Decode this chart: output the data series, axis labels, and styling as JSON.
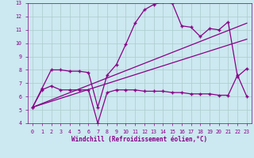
{
  "title": "",
  "xlabel": "Windchill (Refroidissement éolien,°C)",
  "ylabel": "",
  "bg_color": "#cce8f0",
  "line_color": "#880088",
  "grid_color": "#aacccc",
  "xlim": [
    -0.5,
    23.5
  ],
  "ylim": [
    4,
    13
  ],
  "xticks": [
    0,
    1,
    2,
    3,
    4,
    5,
    6,
    7,
    8,
    9,
    10,
    11,
    12,
    13,
    14,
    15,
    16,
    17,
    18,
    19,
    20,
    21,
    22,
    23
  ],
  "yticks": [
    4,
    5,
    6,
    7,
    8,
    9,
    10,
    11,
    12,
    13
  ],
  "series_upper_x": [
    0,
    1,
    2,
    3,
    4,
    5,
    6,
    7,
    8,
    9,
    10,
    11,
    12,
    13,
    14,
    15,
    16,
    17,
    18,
    19,
    20,
    21,
    22,
    23
  ],
  "series_upper_y": [
    5.2,
    6.6,
    8.0,
    8.0,
    7.9,
    7.9,
    7.8,
    5.2,
    7.6,
    8.4,
    9.9,
    11.5,
    12.5,
    12.9,
    13.1,
    13.0,
    11.3,
    11.2,
    10.5,
    11.1,
    11.0,
    11.6,
    7.5,
    8.1
  ],
  "series_lower_x": [
    0,
    1,
    2,
    3,
    4,
    5,
    6,
    7,
    8,
    9,
    10,
    11,
    12,
    13,
    14,
    15,
    16,
    17,
    18,
    19,
    20,
    21,
    22,
    23
  ],
  "series_lower_y": [
    5.2,
    6.5,
    6.8,
    6.5,
    6.5,
    6.5,
    6.5,
    4.0,
    6.3,
    6.5,
    6.5,
    6.5,
    6.4,
    6.4,
    6.4,
    6.3,
    6.3,
    6.2,
    6.2,
    6.2,
    6.1,
    6.1,
    7.6,
    6.0
  ],
  "series_line1_x": [
    0,
    23
  ],
  "series_line1_y": [
    5.2,
    11.5
  ],
  "series_line2_x": [
    0,
    23
  ],
  "series_line2_y": [
    5.2,
    10.3
  ]
}
